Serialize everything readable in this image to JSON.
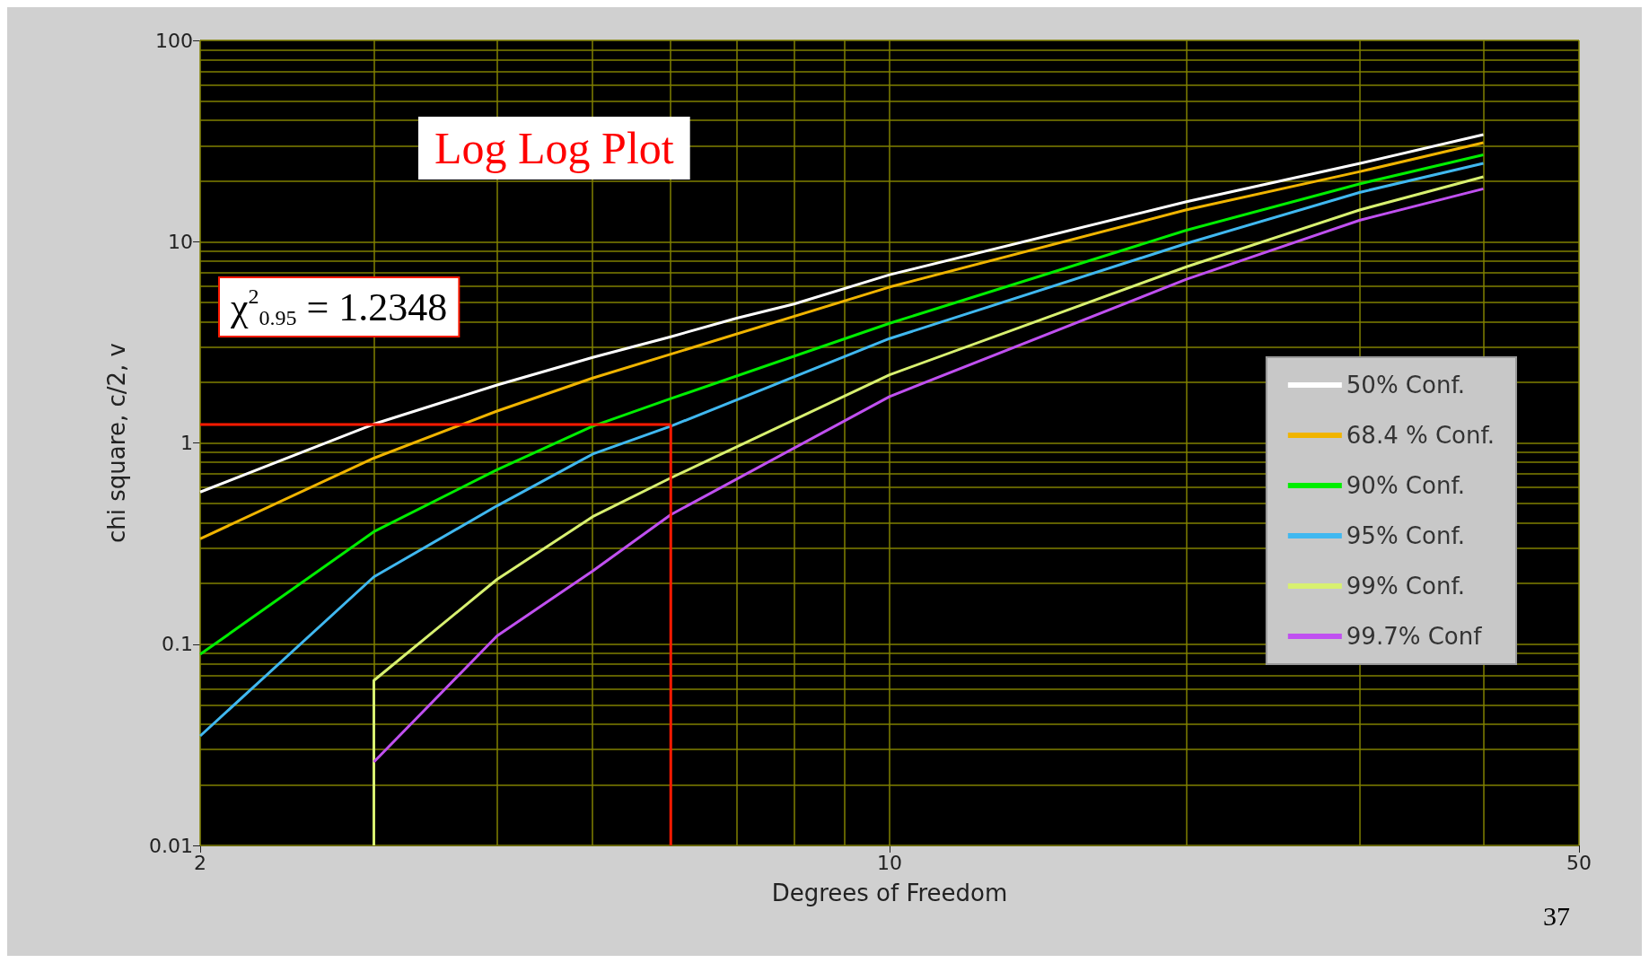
{
  "chart_data": {
    "type": "line",
    "title": "Log Log Plot",
    "xlabel": "Degrees of Freedom",
    "ylabel": "chi square, c/2, v",
    "log": "xy",
    "grid": true,
    "legend": "right",
    "marker": "none",
    "line_style": "solid",
    "xlim": [
      2,
      50
    ],
    "ylim": [
      0.01,
      100
    ],
    "xticks": [
      2,
      {
        "value": 3,
        "label": null
      },
      {
        "value": 4,
        "label": null
      },
      {
        "value": 5,
        "label": null
      },
      {
        "value": 6,
        "label": null
      },
      {
        "value": 7,
        "label": null
      },
      {
        "value": 8,
        "label": null
      },
      {
        "value": 9,
        "label": null
      },
      10,
      {
        "value": 20,
        "label": null
      },
      {
        "value": 30,
        "label": null
      },
      {
        "value": 40,
        "label": null
      },
      50
    ],
    "yticks": [
      0.01,
      {
        "value": 0.02,
        "label": null
      },
      {
        "value": 0.03,
        "label": null
      },
      {
        "value": 0.04,
        "label": null
      },
      {
        "value": 0.05,
        "label": null
      },
      {
        "value": 0.06,
        "label": null
      },
      {
        "value": 0.07,
        "label": null
      },
      {
        "value": 0.08,
        "label": null
      },
      {
        "value": 0.09,
        "label": null
      },
      0.1,
      {
        "value": 0.2,
        "label": null
      },
      {
        "value": 0.3,
        "label": null
      },
      {
        "value": 0.4,
        "label": null
      },
      {
        "value": 0.5,
        "label": null
      },
      {
        "value": 0.6,
        "label": null
      },
      {
        "value": 0.7,
        "label": null
      },
      {
        "value": 0.8,
        "label": null
      },
      {
        "value": 0.9,
        "label": null
      },
      1,
      {
        "value": 2,
        "label": null
      },
      {
        "value": 3,
        "label": null
      },
      {
        "value": 4,
        "label": null
      },
      {
        "value": 5,
        "label": null
      },
      {
        "value": 6,
        "label": null
      },
      {
        "value": 7,
        "label": null
      },
      {
        "value": 8,
        "label": null
      },
      {
        "value": 9,
        "label": null
      },
      10,
      {
        "value": 20,
        "label": null
      },
      {
        "value": 30,
        "label": null
      },
      {
        "value": 40,
        "label": null
      },
      {
        "value": 50,
        "label": null
      },
      {
        "value": 60,
        "label": null
      },
      {
        "value": 70,
        "label": null
      },
      {
        "value": 80,
        "label": null
      },
      {
        "value": 90,
        "label": null
      },
      100
    ],
    "series": [
      {
        "name": "50% Conf.",
        "color": "#ffffff",
        "x": [
          2,
          3,
          4,
          5,
          6,
          7,
          8,
          10,
          20,
          30,
          40
        ],
        "values": [
          0.57,
          1.24,
          1.94,
          2.66,
          3.37,
          4.17,
          4.9,
          6.85,
          15.8,
          24.5,
          34
        ]
      },
      {
        "name": "68.4 % Conf.",
        "color": "#f0b400",
        "x": [
          2,
          3,
          4,
          5,
          6,
          10,
          20,
          30,
          40
        ],
        "values": [
          0.334,
          0.84,
          1.44,
          2.1,
          2.76,
          5.95,
          14.4,
          22.3,
          31
        ]
      },
      {
        "name": "90% Conf.",
        "color": "#00ee00",
        "x": [
          2,
          3,
          4,
          5,
          6,
          10,
          20,
          30,
          40
        ],
        "values": [
          0.089,
          0.362,
          0.736,
          1.21,
          1.66,
          3.93,
          11.4,
          19.4,
          27
        ]
      },
      {
        "name": "95% Conf.",
        "color": "#40b8f0",
        "x": [
          2,
          3,
          4,
          5,
          6,
          10,
          20,
          30,
          40
        ],
        "values": [
          0.035,
          0.216,
          0.487,
          0.88,
          1.21,
          3.3,
          9.8,
          17.6,
          24.5
        ]
      },
      {
        "name": "99% Conf.",
        "color": "#d8f070",
        "x": [
          3,
          3,
          4,
          5,
          6,
          10,
          20,
          30,
          40
        ],
        "values": [
          0.01,
          0.066,
          0.21,
          0.43,
          0.67,
          2.18,
          7.5,
          14.4,
          21
        ]
      },
      {
        "name": "99.7% Conf",
        "color": "#c050f0",
        "x": [
          3,
          4,
          5,
          6,
          10,
          20,
          30,
          40
        ],
        "values": [
          0.026,
          0.11,
          0.231,
          0.44,
          1.7,
          6.5,
          12.8,
          18.3
        ]
      },
      {
        "color": "#ff1a00",
        "x": [
          6,
          2
        ],
        "values": [
          1.2348,
          1.2348
        ]
      },
      {
        "color": "#ff1a00",
        "x": [
          6,
          6
        ],
        "values": [
          0.01,
          1.2348
        ]
      }
    ],
    "annotations": [
      "χ$^{2}$$_{0.95}$ = 1.2348",
      "37"
    ]
  }
}
